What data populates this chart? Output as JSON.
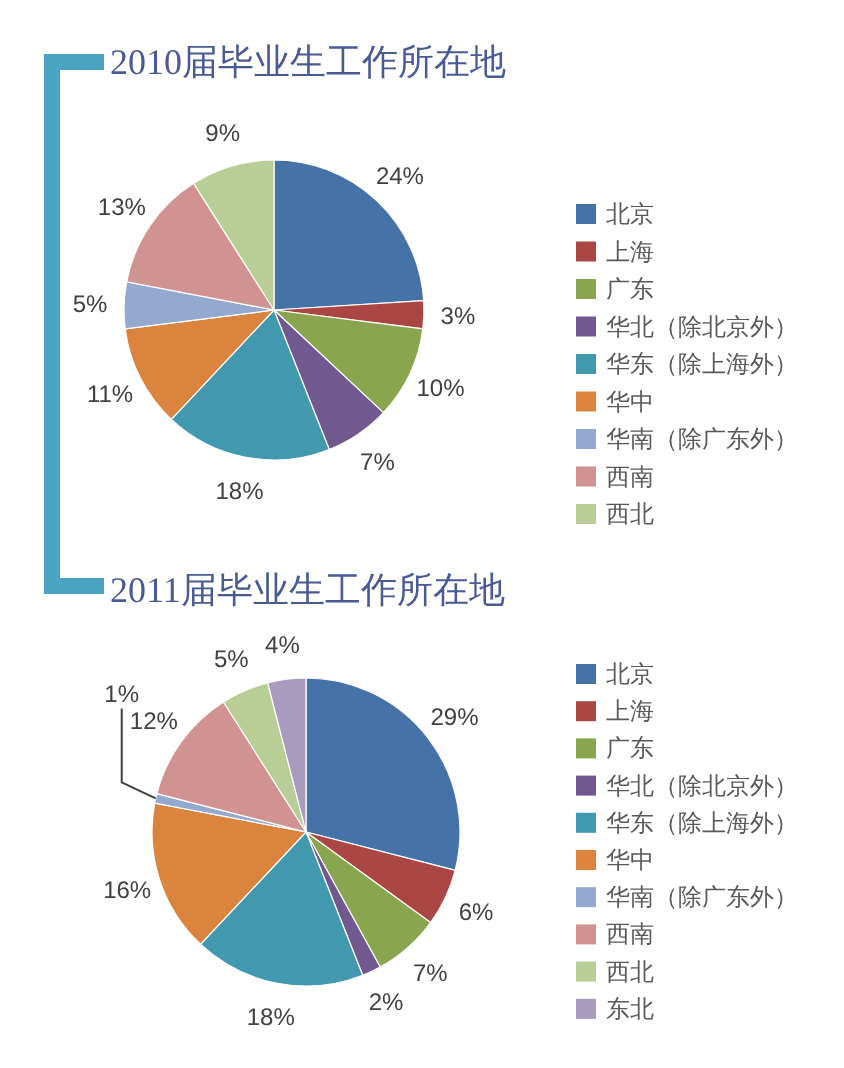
{
  "chart_data": [
    {
      "type": "pie",
      "title": "2010届毕业生工作所在地",
      "categories": [
        "北京",
        "上海",
        "广东",
        "华北（除北京外）",
        "华东（除上海外）",
        "华中",
        "华南（除广东外）",
        "西南",
        "西北"
      ],
      "values": [
        24,
        3,
        10,
        7,
        18,
        11,
        5,
        13,
        9
      ],
      "colors": [
        "#4572a7",
        "#aa4643",
        "#89a54e",
        "#71588f",
        "#4198af",
        "#db843d",
        "#93a9cf",
        "#d19392",
        "#b9cd96"
      ],
      "value_labels": [
        "24%",
        "3%",
        "10%",
        "7%",
        "18%",
        "11%",
        "5%",
        "13%",
        "9%"
      ],
      "legend": "right"
    },
    {
      "type": "pie",
      "title": "2011届毕业生工作所在地",
      "categories": [
        "北京",
        "上海",
        "广东",
        "华北（除北京外）",
        "华东（除上海外）",
        "华中",
        "华南（除广东外）",
        "西南",
        "西北",
        "东北"
      ],
      "values": [
        29,
        6,
        7,
        2,
        18,
        16,
        1,
        12,
        5,
        4
      ],
      "colors": [
        "#4572a7",
        "#aa4643",
        "#89a54e",
        "#71588f",
        "#4198af",
        "#db843d",
        "#93a9cf",
        "#d19392",
        "#b9cd96",
        "#a99bbd"
      ],
      "value_labels": [
        "29%",
        "6%",
        "7%",
        "2%",
        "18%",
        "16%",
        "1%",
        "12%",
        "5%",
        "4%"
      ],
      "legend": "right"
    }
  ]
}
